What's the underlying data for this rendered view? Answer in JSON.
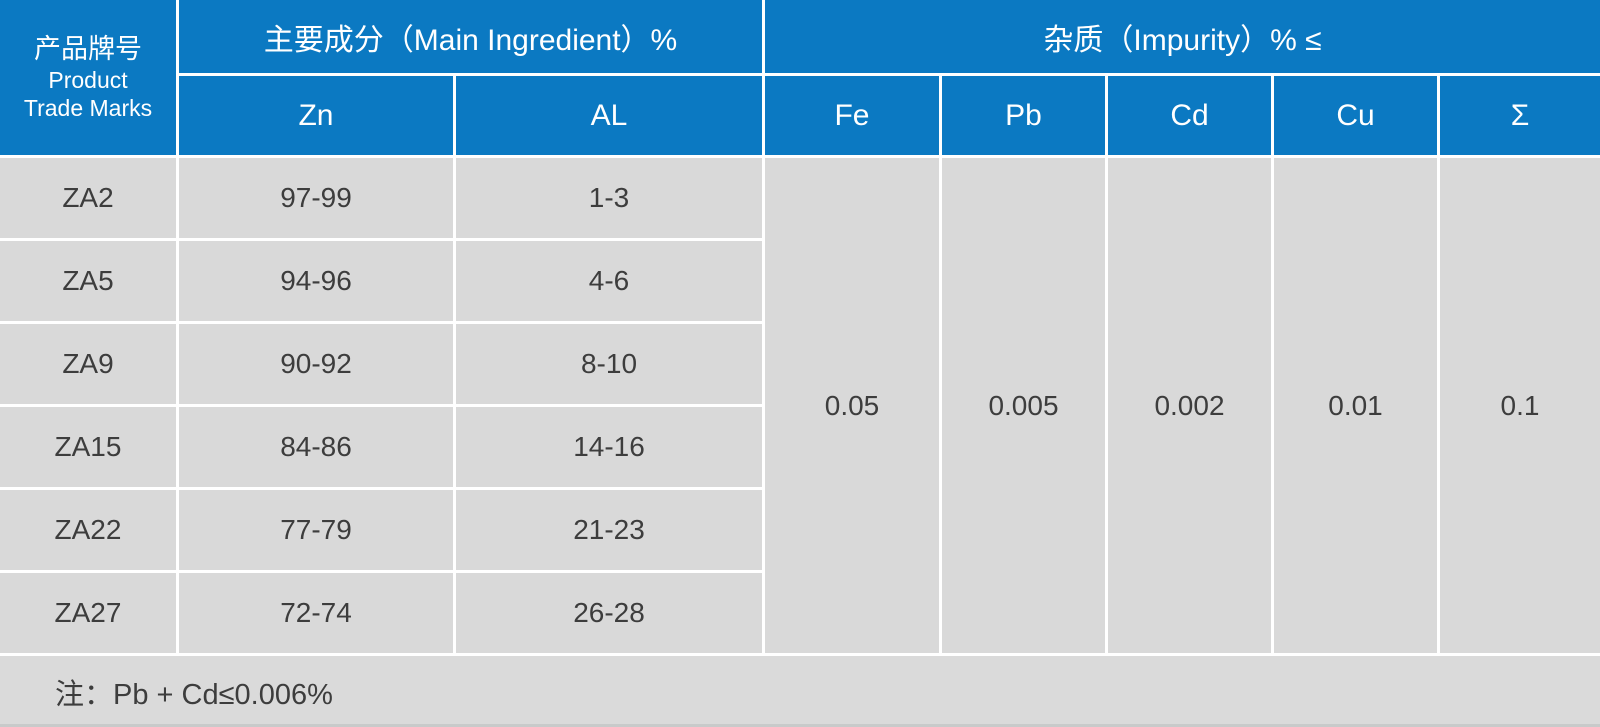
{
  "table": {
    "header": {
      "trade_marks_zh": "产品牌号",
      "trade_marks_en1": "Product",
      "trade_marks_en2": "Trade Marks",
      "main_ingredient": "主要成分（Main Ingredient）%",
      "impurity": "杂质（Impurity）% ≤",
      "main_columns": [
        "Zn",
        "AL"
      ],
      "impurity_columns": [
        "Fe",
        "Pb",
        "Cd",
        "Cu",
        "Σ"
      ]
    },
    "rows": [
      {
        "trade_mark": "ZA2",
        "zn": "97-99",
        "al": "1-3"
      },
      {
        "trade_mark": "ZA5",
        "zn": "94-96",
        "al": "4-6"
      },
      {
        "trade_mark": "ZA9",
        "zn": "90-92",
        "al": "8-10"
      },
      {
        "trade_mark": "ZA15",
        "zn": "84-86",
        "al": "14-16"
      },
      {
        "trade_mark": "ZA22",
        "zn": "77-79",
        "al": "21-23"
      },
      {
        "trade_mark": "ZA27",
        "zn": "72-74",
        "al": "26-28"
      }
    ],
    "impurity_values": [
      "0.05",
      "0.005",
      "0.002",
      "0.01",
      "0.1"
    ],
    "note": "注：Pb + Cd≤0.006%"
  },
  "colors": {
    "header_blue": "#0b79c2",
    "cell_gray": "#d9d9d9",
    "divider_white": "#ffffff",
    "text_dark": "#3d3d3d"
  }
}
